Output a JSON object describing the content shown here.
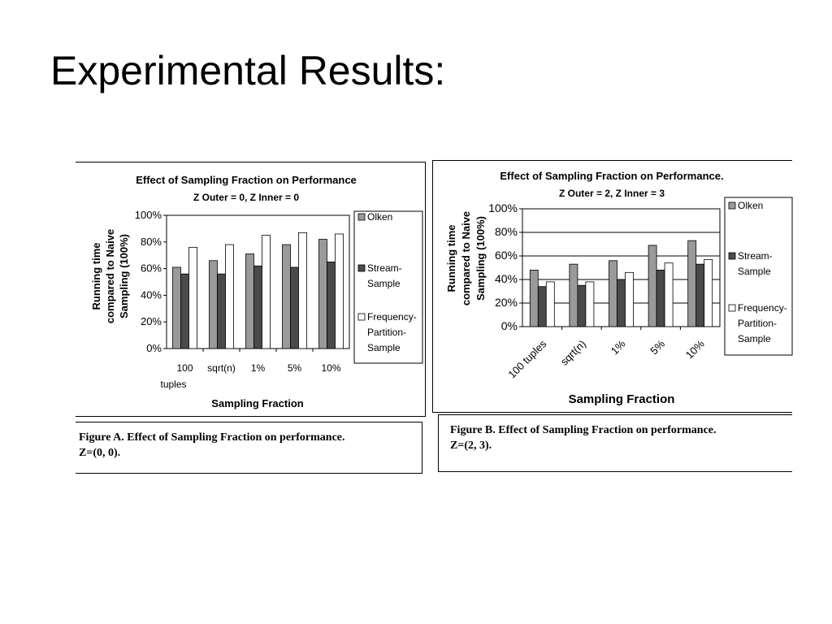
{
  "slide": {
    "title": "Experimental Results:"
  },
  "figures": [
    {
      "caption_line1": "Figure A. Effect of  Sampling Fraction on performance.",
      "caption_line2": "Z=(0, 0)."
    },
    {
      "caption_line1": "Figure B. Effect of  Sampling Fraction on performance.",
      "caption_line2": "Z=(2, 3)."
    }
  ],
  "colors": {
    "olken": "#9a9a9a",
    "stream": "#4a4a4a",
    "frequency": "#ffffff",
    "axis": "#000000"
  },
  "chart_data": [
    {
      "type": "bar",
      "title": "Effect of Sampling Fraction on Performance",
      "subtitle": "Z Outer = 0, Z Inner = 0",
      "xlabel": "Sampling Fraction",
      "ylabel_lines": [
        "Running time",
        "compared to Naive",
        "Sampling (100%)"
      ],
      "categories": [
        "100 tuples",
        "sqrt(n)",
        "1%",
        "5%",
        "10%"
      ],
      "category_label_lines": [
        [
          "100",
          "tuples"
        ],
        [
          "sqrt(n)"
        ],
        [
          "1%"
        ],
        [
          "5%"
        ],
        [
          "10%"
        ]
      ],
      "series": [
        {
          "name": "Olken",
          "legend_lines": [
            "Olken"
          ],
          "values": [
            61,
            66,
            71,
            78,
            82
          ]
        },
        {
          "name": "Stream-Sample",
          "legend_lines": [
            "Stream-",
            "Sample"
          ],
          "values": [
            56,
            56,
            62,
            61,
            65
          ]
        },
        {
          "name": "Frequency-Partition-Sample",
          "legend_lines": [
            "Frequency-",
            "Partition-",
            "Sample"
          ],
          "values": [
            76,
            78,
            85,
            87,
            86
          ]
        }
      ],
      "ylim": [
        0,
        100
      ],
      "yticks": [
        "0%",
        "20%",
        "40%",
        "60%",
        "80%",
        "100%"
      ],
      "grid": false,
      "legend": "right"
    },
    {
      "type": "bar",
      "title": "Effect of Sampling Fraction on Performance.",
      "subtitle": "Z Outer = 2, Z Inner = 3",
      "xlabel": "Sampling Fraction",
      "ylabel_lines": [
        "Running time",
        "compared to Naive",
        "Sampling (100%)"
      ],
      "categories": [
        "100 tuples",
        "sqrt(n)",
        "1%",
        "5%",
        "10%"
      ],
      "category_label_lines": [
        [
          "100 tuples"
        ],
        [
          "sqrt(n)"
        ],
        [
          "1%"
        ],
        [
          "5%"
        ],
        [
          "10%"
        ]
      ],
      "series": [
        {
          "name": "Olken",
          "legend_lines": [
            "Olken"
          ],
          "values": [
            48,
            53,
            56,
            69,
            73
          ]
        },
        {
          "name": "Stream-Sample",
          "legend_lines": [
            "Stream-",
            "Sample"
          ],
          "values": [
            34,
            35,
            40,
            48,
            53
          ]
        },
        {
          "name": "Frequency-Partition-Sample",
          "legend_lines": [
            "Frequency-",
            "Partition-",
            "Sample"
          ],
          "values": [
            38,
            38,
            46,
            54,
            57
          ]
        }
      ],
      "ylim": [
        0,
        100
      ],
      "yticks": [
        "0%",
        "20%",
        "40%",
        "60%",
        "80%",
        "100%"
      ],
      "grid": true,
      "legend": "right"
    }
  ]
}
